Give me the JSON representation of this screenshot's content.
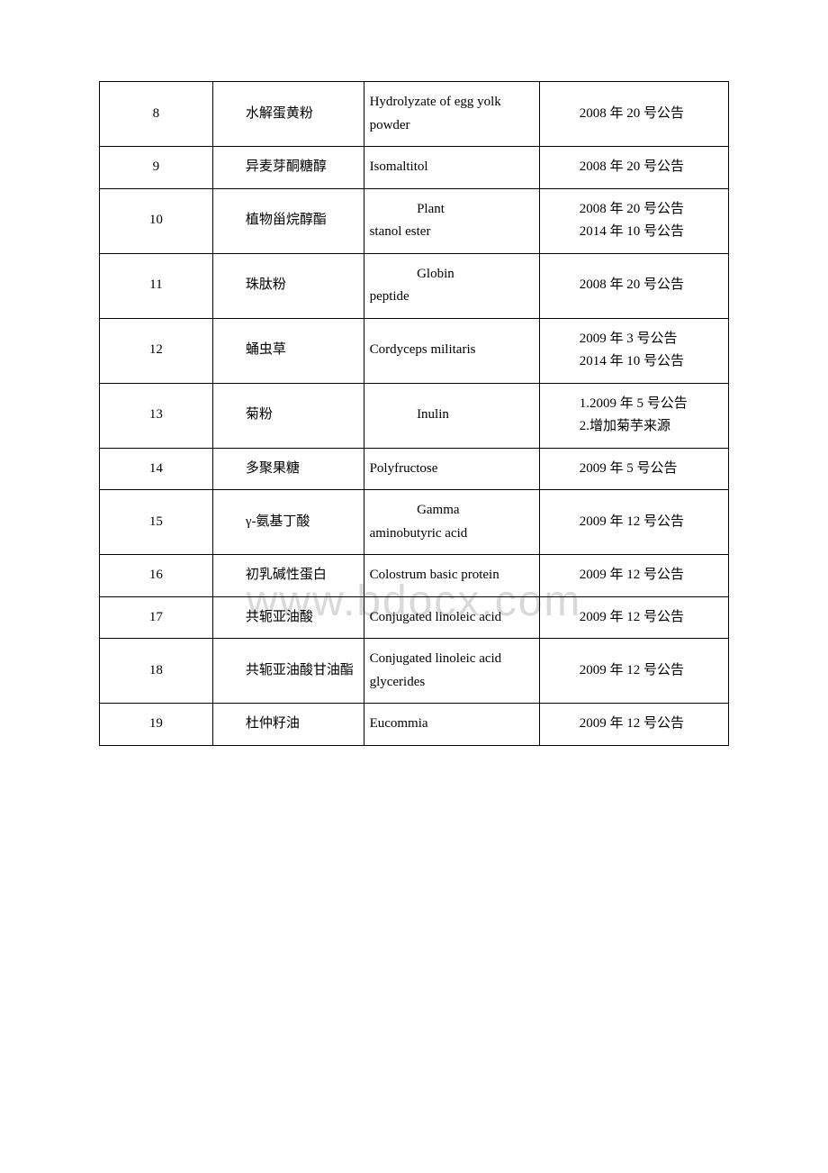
{
  "watermark": "www.bdocx.com",
  "table": {
    "border_color": "#000000",
    "background_color": "#ffffff",
    "text_color": "#000000",
    "font_size_pt": 11,
    "column_widths_pct": [
      18,
      24,
      28,
      30
    ],
    "rows": [
      {
        "num": "8",
        "cn": "水解蛋黄粉",
        "en_lines": [
          "",
          "Hydrolyzate of egg yolk powder"
        ],
        "note_lines": [
          "2008 年 20 号公告"
        ]
      },
      {
        "num": "9",
        "cn": "异麦芽酮糖醇",
        "en_lines": [
          "",
          "Isomaltitol"
        ],
        "note_lines": [
          "2008 年 20 号公告"
        ]
      },
      {
        "num": "10",
        "cn": "植物甾烷醇酯",
        "en_lines": [
          "Plant",
          "stanol ester"
        ],
        "note_lines": [
          "2008 年 20 号公告",
          "2014 年 10 号公告"
        ]
      },
      {
        "num": "11",
        "cn": "珠肽粉",
        "en_lines": [
          "Globin",
          "peptide"
        ],
        "note_lines": [
          "2008 年 20 号公告"
        ]
      },
      {
        "num": "12",
        "cn": "蛹虫草",
        "en_lines": [
          "",
          "Cordyceps militaris"
        ],
        "note_lines": [
          "2009 年 3 号公告",
          "2014 年 10 号公告"
        ]
      },
      {
        "num": "13",
        "cn": "菊粉",
        "en_lines": [
          "Inulin"
        ],
        "note_lines": [
          "1.2009 年 5 号公告",
          "2.增加菊芋来源"
        ]
      },
      {
        "num": "14",
        "cn": "多聚果糖",
        "en_lines": [
          "",
          "Polyfructose"
        ],
        "note_lines": [
          "2009 年 5 号公告"
        ]
      },
      {
        "num": "15",
        "cn": "γ-氨基丁酸",
        "en_lines": [
          "Gamma",
          "aminobutyric acid"
        ],
        "note_lines": [
          "2009 年 12 号公告"
        ]
      },
      {
        "num": "16",
        "cn": "初乳碱性蛋白",
        "en_lines": [
          "",
          "Colostrum basic protein"
        ],
        "note_lines": [
          "2009 年 12 号公告"
        ]
      },
      {
        "num": "17",
        "cn": "共轭亚油酸",
        "en_lines": [
          "",
          "Conjugated linoleic acid"
        ],
        "note_lines": [
          "2009 年 12 号公告"
        ]
      },
      {
        "num": "18",
        "cn": "共轭亚油酸甘油酯",
        "en_lines": [
          "",
          "Conjugated linoleic acid glycerides"
        ],
        "note_lines": [
          "2009 年 12 号公告"
        ]
      },
      {
        "num": "19",
        "cn": "杜仲籽油",
        "en_lines": [
          "",
          "Eucommia"
        ],
        "note_lines": [
          "2009 年 12 号公告"
        ]
      }
    ]
  }
}
